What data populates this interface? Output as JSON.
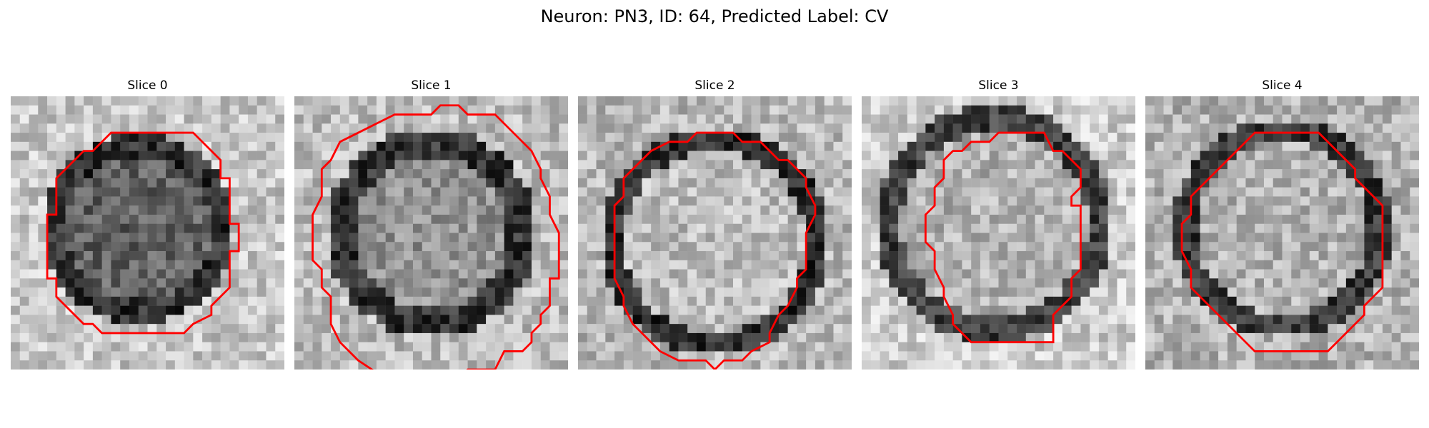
{
  "figure": {
    "title": "Neuron: PN3, ID: 64, Predicted Label: CV"
  },
  "slices": [
    {
      "title": "Slice 0"
    },
    {
      "title": "Slice 1"
    },
    {
      "title": "Slice 2"
    },
    {
      "title": "Slice 3"
    },
    {
      "title": "Slice 4"
    }
  ],
  "colors": {
    "outline": "#ff0000",
    "background": "#ffffff"
  }
}
